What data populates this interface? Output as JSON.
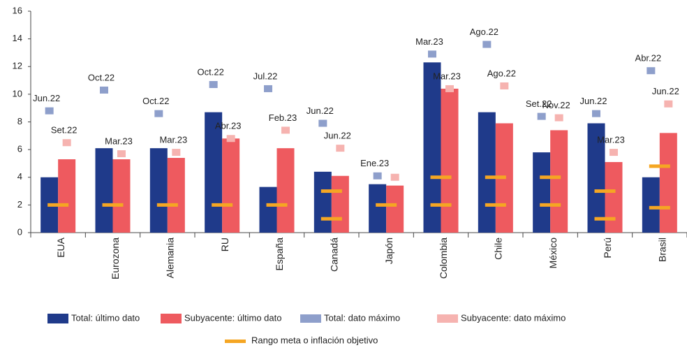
{
  "chart_data": {
    "type": "bar",
    "categories": [
      "EUA",
      "Eurozona",
      "Alemania",
      "RU",
      "España",
      "Canadá",
      "Japón",
      "Colombia",
      "Chile",
      "México",
      "Perú",
      "Brasil"
    ],
    "ylim": [
      0,
      16
    ],
    "yticks": [
      0,
      2,
      4,
      6,
      8,
      10,
      12,
      14,
      16
    ],
    "series": [
      {
        "name": "Total: último dato",
        "color": "#1f3a8a",
        "kind": "bar",
        "values": [
          4.0,
          6.1,
          6.1,
          8.7,
          3.3,
          4.4,
          3.5,
          12.3,
          8.7,
          5.8,
          7.9,
          4.0
        ]
      },
      {
        "name": "Subyacente: último dato",
        "color": "#ee5a5f",
        "kind": "bar",
        "values": [
          5.3,
          5.3,
          5.4,
          6.8,
          6.1,
          4.1,
          3.4,
          10.4,
          7.9,
          7.4,
          5.1,
          7.2
        ]
      },
      {
        "name": "Total: dato máximo",
        "color": "#8e9fcb",
        "kind": "marker",
        "values": [
          8.8,
          10.3,
          8.6,
          10.7,
          10.4,
          7.9,
          4.1,
          12.9,
          13.6,
          8.4,
          8.6,
          11.7
        ],
        "labels": [
          "Jun.22",
          "Oct.22",
          "Oct.22",
          "Oct.22",
          "Jul.22",
          "Jun.22",
          "Ene.23",
          "Mar.23",
          "Ago.22",
          "Set.22",
          "Jun.22",
          "Abr.22"
        ]
      },
      {
        "name": "Subyacente: dato máximo",
        "color": "#f6b3b0",
        "kind": "marker",
        "values": [
          6.5,
          5.7,
          5.8,
          6.8,
          7.4,
          6.1,
          4.0,
          10.4,
          10.6,
          8.3,
          5.8,
          9.3
        ],
        "labels": [
          "Set.22",
          "Mar.23",
          "Mar.23",
          "Abr.23",
          "Feb.23",
          "Jun.22",
          null,
          "Mar.23",
          "Ago.22",
          "Nov.22",
          "Mar.23",
          "Jun.22"
        ]
      }
    ],
    "target": {
      "name": "Rango meta o inflación objetivo",
      "color": "#f5a623",
      "low": [
        2,
        2,
        2,
        2,
        2,
        1,
        2,
        2,
        2,
        2,
        1,
        1.8
      ],
      "high": [
        null,
        null,
        null,
        null,
        null,
        3,
        null,
        4,
        4,
        4,
        3,
        4.8
      ]
    }
  }
}
